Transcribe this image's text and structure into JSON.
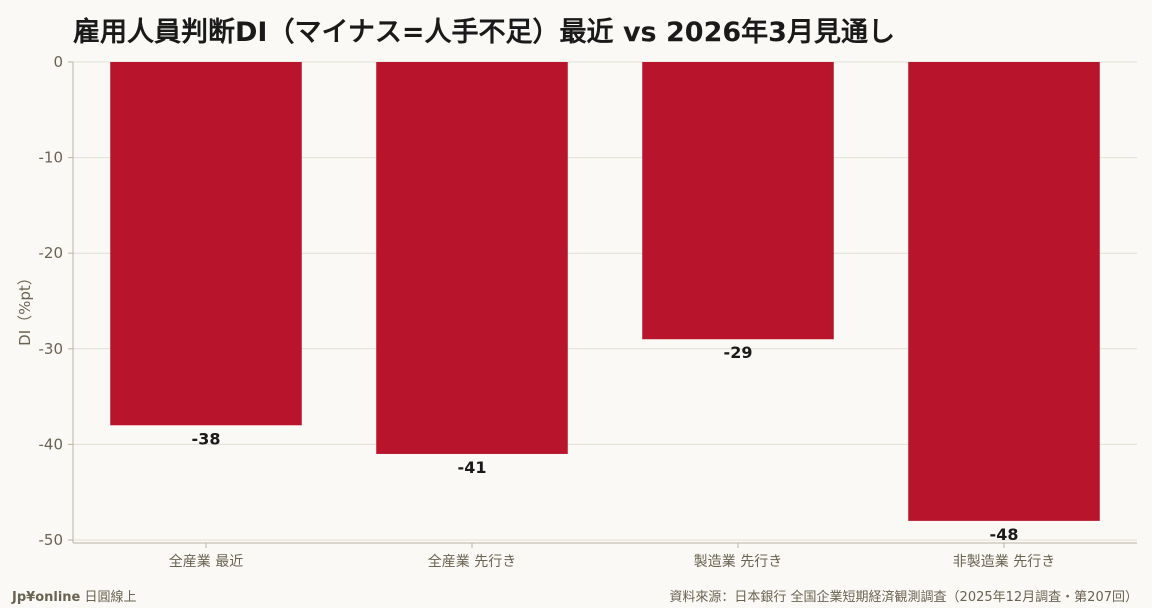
{
  "chart_data": {
    "type": "bar",
    "title": "雇用人員判断DI（マイナス=人手不足）最近 vs 2026年3月見通し",
    "xlabel": "",
    "ylabel": "DI（%pt）",
    "categories": [
      "全産業 最近",
      "全産業 先行き",
      "製造業 先行き",
      "非製造業 先行き"
    ],
    "values": [
      -38,
      -41,
      -29,
      -48
    ],
    "data_labels": [
      "-38",
      "-41",
      "-29",
      "-48"
    ],
    "ylim": [
      -50,
      0
    ],
    "yticks": [
      0,
      -10,
      -20,
      -30,
      -40,
      -50
    ],
    "ytick_labels": [
      "0",
      "-10",
      "-20",
      "-30",
      "-40",
      "-50"
    ],
    "grid": true,
    "bar_color": "#b8152c"
  },
  "footer": {
    "brand": "Jp¥online",
    "brand_sub": "日圓線上",
    "source": "資料來源：日本銀行 全国企業短期経済観測調査（2025年12月調査・第207回）"
  }
}
